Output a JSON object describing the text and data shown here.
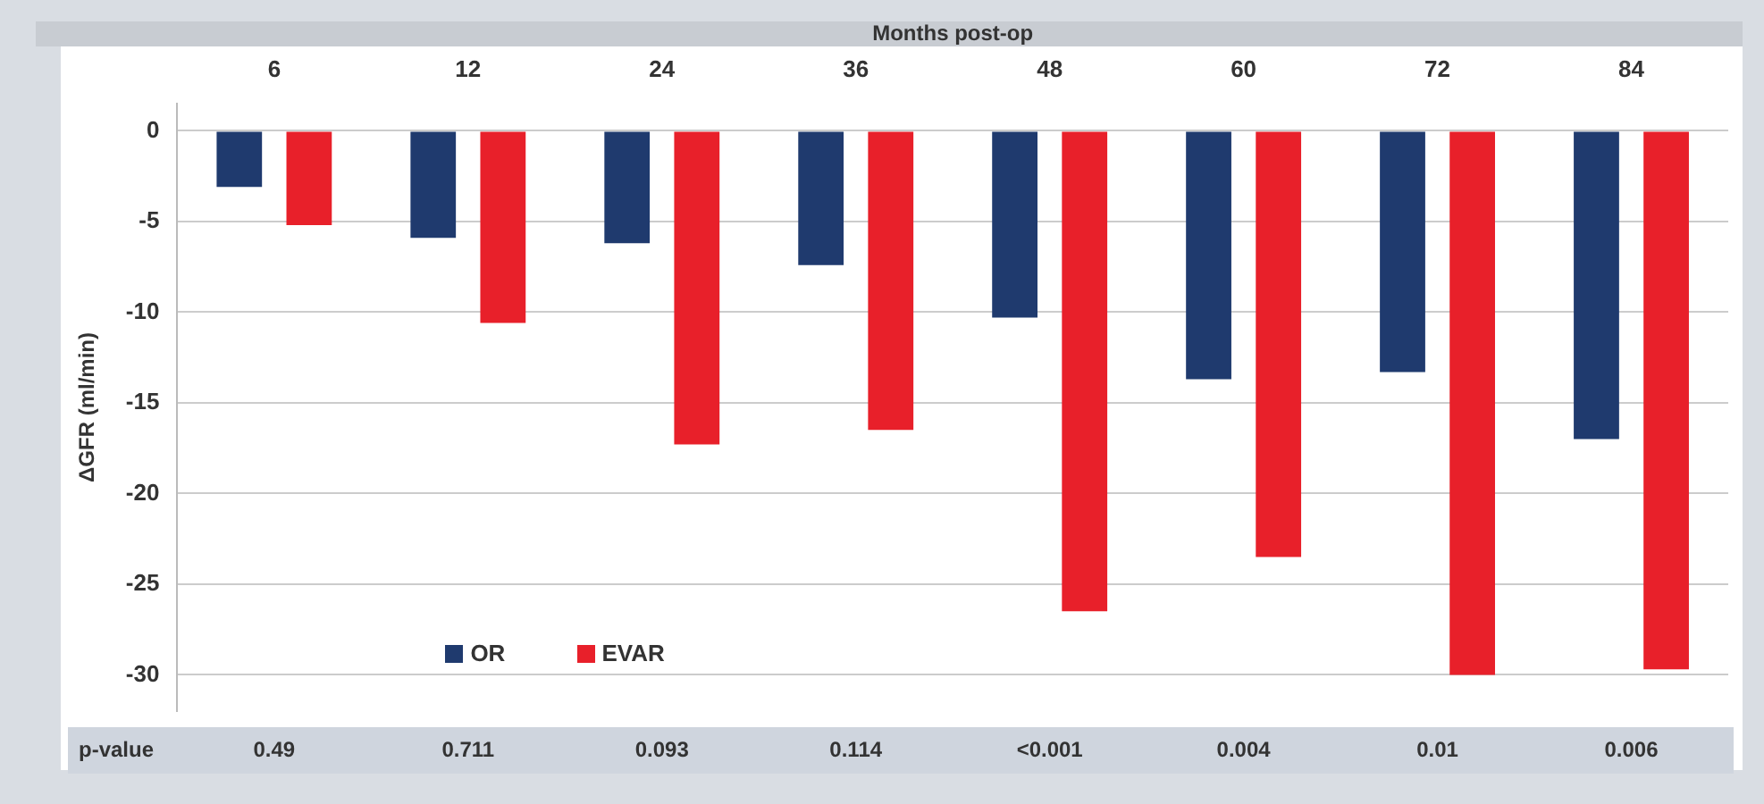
{
  "chart_data": {
    "type": "bar",
    "xlabel": "Months post-op",
    "ylabel": "ΔGFR (ml/min)",
    "categories": [
      "6",
      "12",
      "24",
      "36",
      "48",
      "60",
      "72",
      "84"
    ],
    "series": [
      {
        "name": "OR",
        "color": "#1f3a6e",
        "values": [
          -3.1,
          -5.9,
          -6.2,
          -7.4,
          -10.3,
          -13.7,
          -13.3,
          -17.0
        ]
      },
      {
        "name": "EVAR",
        "color": "#e8202a",
        "values": [
          -5.2,
          -10.6,
          -17.3,
          -16.5,
          -26.5,
          -23.5,
          -30.0,
          -29.7
        ]
      }
    ],
    "ylim": [
      -32,
      1.5
    ],
    "yticks": [
      0,
      -5,
      -10,
      -15,
      -20,
      -25,
      -30
    ],
    "grid": "y",
    "legend": "bottom left",
    "annotations": [
      "p-value",
      "0.49",
      "0.711",
      "0.093",
      "0.114",
      "<0.001",
      "0.004",
      "0.01",
      "0.006"
    ]
  }
}
